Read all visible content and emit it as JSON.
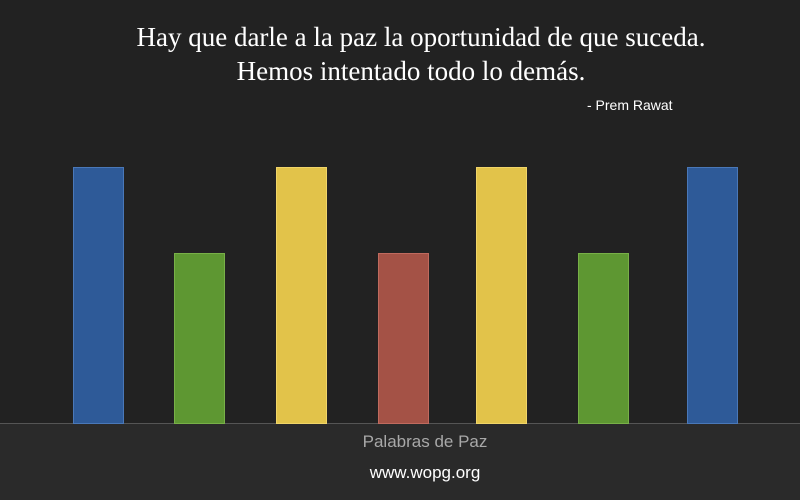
{
  "quote": {
    "lines": [
      "Hay que darle a la paz la oportunidad de que suceda.",
      "Hemos intentado todo lo demás."
    ],
    "author": "- Prem Rawat"
  },
  "footer": {
    "title": "Palabras de Paz",
    "url": "www.wopg.org"
  }
}
